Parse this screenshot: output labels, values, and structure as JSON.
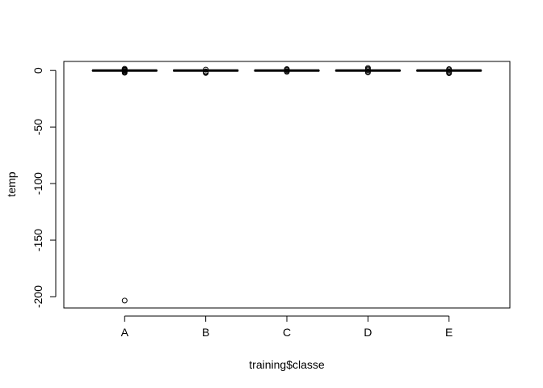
{
  "chart_data": {
    "type": "boxplot",
    "title": "",
    "xlabel": "training$classe",
    "ylabel": "temp",
    "categories": [
      "A",
      "B",
      "C",
      "D",
      "E"
    ],
    "ylim": [
      -210,
      8
    ],
    "yticks": [
      0,
      -50,
      -100,
      -150,
      -200
    ],
    "ytick_labels": [
      "0",
      "-50",
      "-100",
      "-150",
      "-200"
    ],
    "grid": false,
    "legend": "none",
    "boxes": [
      {
        "category": "A",
        "q1": 0,
        "median": 0,
        "q3": 0,
        "whisker_low": 0,
        "whisker_high": 0,
        "outliers": [
          1.5,
          0.8,
          0.3,
          -0.5,
          -1.2,
          -2,
          -203.5
        ]
      },
      {
        "category": "B",
        "q1": -0.4,
        "median": 0,
        "q3": 0.2,
        "whisker_low": -0.6,
        "whisker_high": 0.5,
        "outliers": [
          0.8,
          -0.8,
          -1.5,
          -2.2
        ]
      },
      {
        "category": "C",
        "q1": 0,
        "median": 0,
        "q3": 0,
        "whisker_low": 0,
        "whisker_high": 0,
        "outliers": [
          1.2,
          0.5,
          -0.5,
          -1.2
        ]
      },
      {
        "category": "D",
        "q1": 0,
        "median": 0,
        "q3": 0,
        "whisker_low": 0,
        "whisker_high": 0,
        "outliers": [
          2.2,
          1.2,
          0.3,
          -0.8,
          -1.8
        ]
      },
      {
        "category": "E",
        "q1": 0,
        "median": 0,
        "q3": 0,
        "whisker_low": 0,
        "whisker_high": 0,
        "outliers": [
          1.2,
          0.3,
          -0.8,
          -1.6,
          -2.4
        ]
      }
    ]
  }
}
